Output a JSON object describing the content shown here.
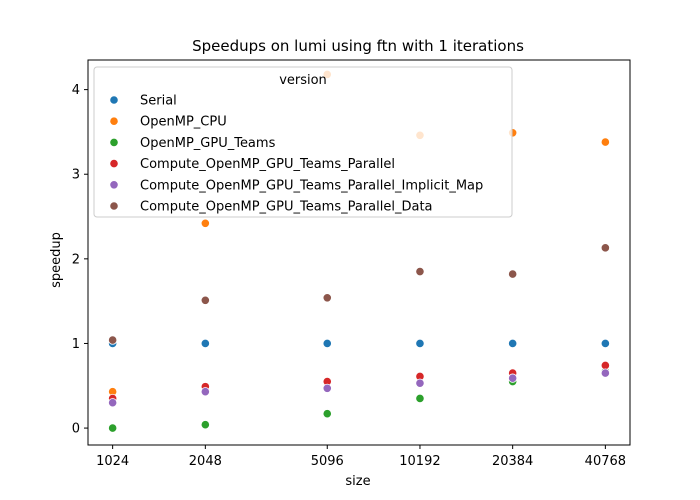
{
  "chart_data": {
    "type": "scatter",
    "title": "Speedups on lumi using ftn with 1 iterations",
    "xlabel": "size",
    "ylabel": "speedup",
    "x": [
      "1024",
      "2048",
      "5096",
      "10192",
      "20384",
      "40768"
    ],
    "x_scale": "log2",
    "x_values": [
      1024,
      2048,
      5096,
      10192,
      20384,
      40768
    ],
    "ylim": [
      -0.2,
      4.35
    ],
    "yticks": [
      "0",
      "1",
      "2",
      "3",
      "4"
    ],
    "grid": false,
    "legend": {
      "title": "version",
      "placement": "upper-left"
    },
    "series": [
      {
        "name": "Serial",
        "color": "#1f77b4",
        "values": [
          1.0,
          1.0,
          1.0,
          1.0,
          1.0,
          1.0
        ]
      },
      {
        "name": "OpenMP_CPU",
        "color": "#ff7f0e",
        "values": [
          0.43,
          2.42,
          4.18,
          3.46,
          3.49,
          3.38
        ]
      },
      {
        "name": "OpenMP_GPU_Teams",
        "color": "#2ca02c",
        "values": [
          0.0,
          0.04,
          0.17,
          0.35,
          0.55,
          0.67
        ]
      },
      {
        "name": "Compute_OpenMP_GPU_Teams_Parallel",
        "color": "#d62728",
        "values": [
          0.35,
          0.49,
          0.55,
          0.61,
          0.65,
          0.74
        ]
      },
      {
        "name": "Compute_OpenMP_GPU_Teams_Parallel_Implicit_Map",
        "color": "#9467bd",
        "values": [
          0.3,
          0.43,
          0.47,
          0.53,
          0.59,
          0.65
        ]
      },
      {
        "name": "Compute_OpenMP_GPU_Teams_Parallel_Data",
        "color": "#8c564b",
        "values": [
          1.04,
          1.51,
          1.54,
          1.85,
          1.82,
          2.13
        ]
      }
    ]
  }
}
